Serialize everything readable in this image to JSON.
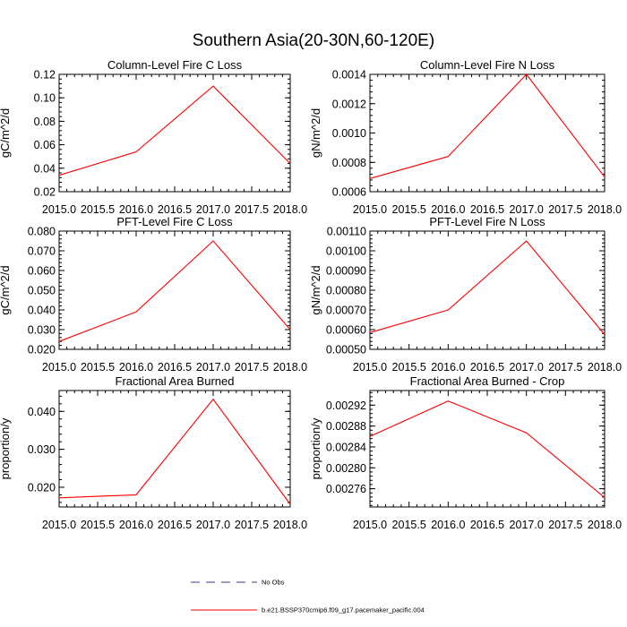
{
  "figure_title": "Southern Asia(20-30N,60-120E)",
  "chart_data": [
    {
      "type": "line",
      "title": "Column-Level Fire C Loss",
      "ylabel": "gC/m^2/d",
      "x": [
        2015.0,
        2016.0,
        2017.0,
        2018.0
      ],
      "series": [
        {
          "name": "b.e21.BSSP370cmip6.f09_g17.pacemaker_pacific.004",
          "values": [
            0.034,
            0.054,
            0.11,
            0.044
          ]
        }
      ],
      "xlim": [
        2015.0,
        2018.0
      ],
      "ylim": [
        0.02,
        0.12
      ],
      "xticks": [
        "2015.0",
        "2015.5",
        "2016.0",
        "2016.5",
        "2017.0",
        "2017.5",
        "2018.0"
      ],
      "yticks": [
        "0.02",
        "0.04",
        "0.06",
        "0.08",
        "0.10",
        "0.12"
      ]
    },
    {
      "type": "line",
      "title": "Column-Level Fire N Loss",
      "ylabel": "gN/m^2/d",
      "x": [
        2015.0,
        2016.0,
        2017.0,
        2018.0
      ],
      "series": [
        {
          "name": "b.e21.BSSP370cmip6.f09_g17.pacemaker_pacific.004",
          "values": [
            0.00069,
            0.00084,
            0.0014,
            0.0007
          ]
        }
      ],
      "xlim": [
        2015.0,
        2018.0
      ],
      "ylim": [
        0.0006,
        0.0014
      ],
      "xticks": [
        "2015.0",
        "2015.5",
        "2016.0",
        "2016.5",
        "2017.0",
        "2017.5",
        "2018.0"
      ],
      "yticks": [
        "0.0006",
        "0.0008",
        "0.0010",
        "0.0012",
        "0.0014"
      ]
    },
    {
      "type": "line",
      "title": "PFT-Level Fire C Loss",
      "ylabel": "gC/m^2/d",
      "x": [
        2015.0,
        2016.0,
        2017.0,
        2018.0
      ],
      "series": [
        {
          "name": "b.e21.BSSP370cmip6.f09_g17.pacemaker_pacific.004",
          "values": [
            0.024,
            0.039,
            0.075,
            0.03
          ]
        }
      ],
      "xlim": [
        2015.0,
        2018.0
      ],
      "ylim": [
        0.02,
        0.08
      ],
      "xticks": [
        "2015.0",
        "2015.5",
        "2016.0",
        "2016.5",
        "2017.0",
        "2017.5",
        "2018.0"
      ],
      "yticks": [
        "0.020",
        "0.030",
        "0.040",
        "0.050",
        "0.060",
        "0.070",
        "0.080"
      ]
    },
    {
      "type": "line",
      "title": "PFT-Level Fire N Loss",
      "ylabel": "gN/m^2/d",
      "x": [
        2015.0,
        2016.0,
        2017.0,
        2018.0
      ],
      "series": [
        {
          "name": "b.e21.BSSP370cmip6.f09_g17.pacemaker_pacific.004",
          "values": [
            0.000585,
            0.0007,
            0.00105,
            0.000575
          ]
        }
      ],
      "xlim": [
        2015.0,
        2018.0
      ],
      "ylim": [
        0.0005,
        0.0011
      ],
      "xticks": [
        "2015.0",
        "2015.5",
        "2016.0",
        "2016.5",
        "2017.0",
        "2017.5",
        "2018.0"
      ],
      "yticks": [
        "0.00050",
        "0.00060",
        "0.00070",
        "0.00080",
        "0.00090",
        "0.00100",
        "0.00110"
      ]
    },
    {
      "type": "line",
      "title": "Fractional Area Burned",
      "ylabel": "proportion/y",
      "x": [
        2015.0,
        2016.0,
        2017.0,
        2018.0
      ],
      "series": [
        {
          "name": "b.e21.BSSP370cmip6.f09_g17.pacemaker_pacific.004",
          "values": [
            0.0172,
            0.018,
            0.0432,
            0.0155
          ]
        }
      ],
      "xlim": [
        2015.0,
        2018.0
      ],
      "ylim": [
        0.0148,
        0.0455
      ],
      "xticks": [
        "2015.0",
        "2015.5",
        "2016.0",
        "2016.5",
        "2017.0",
        "2017.5",
        "2018.0"
      ],
      "yticks": [
        "0.020",
        "0.030",
        "0.040"
      ],
      "ytick_values": [
        0.02,
        0.03,
        0.04
      ]
    },
    {
      "type": "line",
      "title": "Fractional Area Burned - Crop",
      "ylabel": "proportion/y",
      "x": [
        2015.0,
        2016.0,
        2017.0,
        2018.0
      ],
      "series": [
        {
          "name": "b.e21.BSSP370cmip6.f09_g17.pacemaker_pacific.004",
          "values": [
            0.00286,
            0.002928,
            0.002867,
            0.002743
          ]
        }
      ],
      "xlim": [
        2015.0,
        2018.0
      ],
      "ylim": [
        0.002725,
        0.002948
      ],
      "xticks": [
        "2015.0",
        "2015.5",
        "2016.0",
        "2016.5",
        "2017.0",
        "2017.5",
        "2018.0"
      ],
      "yticks": [
        "0.00276",
        "0.00280",
        "0.00284",
        "0.00288",
        "0.00292"
      ],
      "ytick_values": [
        0.00276,
        0.0028,
        0.00284,
        0.00288,
        0.00292
      ]
    }
  ],
  "legend": [
    {
      "label": "No Obs",
      "style": "dashed",
      "color": "#3b3b8f"
    },
    {
      "label": "b.e21.BSSP370cmip6.f09_g17.pacemaker_pacific.004",
      "style": "solid",
      "color": "#ff0000"
    }
  ],
  "colors": {
    "series": "#ff0000",
    "axes": "#000000"
  }
}
